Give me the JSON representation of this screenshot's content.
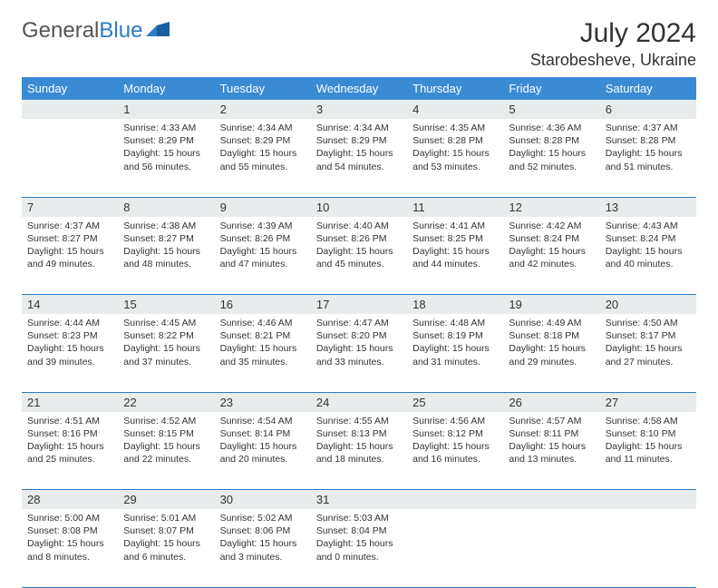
{
  "brand": {
    "part1": "General",
    "part2": "Blue"
  },
  "title": "July 2024",
  "location": "Starobesheve, Ukraine",
  "colors": {
    "header_bg": "#3b8bd4",
    "header_text": "#ffffff",
    "daynum_bg": "#e9eced",
    "border": "#2d7bc4",
    "brand_accent": "#2d7bc4",
    "text": "#333333",
    "background": "#ffffff"
  },
  "weekdays": [
    "Sunday",
    "Monday",
    "Tuesday",
    "Wednesday",
    "Thursday",
    "Friday",
    "Saturday"
  ],
  "weeks": [
    {
      "nums": [
        "",
        "1",
        "2",
        "3",
        "4",
        "5",
        "6"
      ],
      "cells": [
        null,
        {
          "sunrise": "Sunrise: 4:33 AM",
          "sunset": "Sunset: 8:29 PM",
          "daylight": "Daylight: 15 hours and 56 minutes."
        },
        {
          "sunrise": "Sunrise: 4:34 AM",
          "sunset": "Sunset: 8:29 PM",
          "daylight": "Daylight: 15 hours and 55 minutes."
        },
        {
          "sunrise": "Sunrise: 4:34 AM",
          "sunset": "Sunset: 8:29 PM",
          "daylight": "Daylight: 15 hours and 54 minutes."
        },
        {
          "sunrise": "Sunrise: 4:35 AM",
          "sunset": "Sunset: 8:28 PM",
          "daylight": "Daylight: 15 hours and 53 minutes."
        },
        {
          "sunrise": "Sunrise: 4:36 AM",
          "sunset": "Sunset: 8:28 PM",
          "daylight": "Daylight: 15 hours and 52 minutes."
        },
        {
          "sunrise": "Sunrise: 4:37 AM",
          "sunset": "Sunset: 8:28 PM",
          "daylight": "Daylight: 15 hours and 51 minutes."
        }
      ]
    },
    {
      "nums": [
        "7",
        "8",
        "9",
        "10",
        "11",
        "12",
        "13"
      ],
      "cells": [
        {
          "sunrise": "Sunrise: 4:37 AM",
          "sunset": "Sunset: 8:27 PM",
          "daylight": "Daylight: 15 hours and 49 minutes."
        },
        {
          "sunrise": "Sunrise: 4:38 AM",
          "sunset": "Sunset: 8:27 PM",
          "daylight": "Daylight: 15 hours and 48 minutes."
        },
        {
          "sunrise": "Sunrise: 4:39 AM",
          "sunset": "Sunset: 8:26 PM",
          "daylight": "Daylight: 15 hours and 47 minutes."
        },
        {
          "sunrise": "Sunrise: 4:40 AM",
          "sunset": "Sunset: 8:26 PM",
          "daylight": "Daylight: 15 hours and 45 minutes."
        },
        {
          "sunrise": "Sunrise: 4:41 AM",
          "sunset": "Sunset: 8:25 PM",
          "daylight": "Daylight: 15 hours and 44 minutes."
        },
        {
          "sunrise": "Sunrise: 4:42 AM",
          "sunset": "Sunset: 8:24 PM",
          "daylight": "Daylight: 15 hours and 42 minutes."
        },
        {
          "sunrise": "Sunrise: 4:43 AM",
          "sunset": "Sunset: 8:24 PM",
          "daylight": "Daylight: 15 hours and 40 minutes."
        }
      ]
    },
    {
      "nums": [
        "14",
        "15",
        "16",
        "17",
        "18",
        "19",
        "20"
      ],
      "cells": [
        {
          "sunrise": "Sunrise: 4:44 AM",
          "sunset": "Sunset: 8:23 PM",
          "daylight": "Daylight: 15 hours and 39 minutes."
        },
        {
          "sunrise": "Sunrise: 4:45 AM",
          "sunset": "Sunset: 8:22 PM",
          "daylight": "Daylight: 15 hours and 37 minutes."
        },
        {
          "sunrise": "Sunrise: 4:46 AM",
          "sunset": "Sunset: 8:21 PM",
          "daylight": "Daylight: 15 hours and 35 minutes."
        },
        {
          "sunrise": "Sunrise: 4:47 AM",
          "sunset": "Sunset: 8:20 PM",
          "daylight": "Daylight: 15 hours and 33 minutes."
        },
        {
          "sunrise": "Sunrise: 4:48 AM",
          "sunset": "Sunset: 8:19 PM",
          "daylight": "Daylight: 15 hours and 31 minutes."
        },
        {
          "sunrise": "Sunrise: 4:49 AM",
          "sunset": "Sunset: 8:18 PM",
          "daylight": "Daylight: 15 hours and 29 minutes."
        },
        {
          "sunrise": "Sunrise: 4:50 AM",
          "sunset": "Sunset: 8:17 PM",
          "daylight": "Daylight: 15 hours and 27 minutes."
        }
      ]
    },
    {
      "nums": [
        "21",
        "22",
        "23",
        "24",
        "25",
        "26",
        "27"
      ],
      "cells": [
        {
          "sunrise": "Sunrise: 4:51 AM",
          "sunset": "Sunset: 8:16 PM",
          "daylight": "Daylight: 15 hours and 25 minutes."
        },
        {
          "sunrise": "Sunrise: 4:52 AM",
          "sunset": "Sunset: 8:15 PM",
          "daylight": "Daylight: 15 hours and 22 minutes."
        },
        {
          "sunrise": "Sunrise: 4:54 AM",
          "sunset": "Sunset: 8:14 PM",
          "daylight": "Daylight: 15 hours and 20 minutes."
        },
        {
          "sunrise": "Sunrise: 4:55 AM",
          "sunset": "Sunset: 8:13 PM",
          "daylight": "Daylight: 15 hours and 18 minutes."
        },
        {
          "sunrise": "Sunrise: 4:56 AM",
          "sunset": "Sunset: 8:12 PM",
          "daylight": "Daylight: 15 hours and 16 minutes."
        },
        {
          "sunrise": "Sunrise: 4:57 AM",
          "sunset": "Sunset: 8:11 PM",
          "daylight": "Daylight: 15 hours and 13 minutes."
        },
        {
          "sunrise": "Sunrise: 4:58 AM",
          "sunset": "Sunset: 8:10 PM",
          "daylight": "Daylight: 15 hours and 11 minutes."
        }
      ]
    },
    {
      "nums": [
        "28",
        "29",
        "30",
        "31",
        "",
        "",
        ""
      ],
      "cells": [
        {
          "sunrise": "Sunrise: 5:00 AM",
          "sunset": "Sunset: 8:08 PM",
          "daylight": "Daylight: 15 hours and 8 minutes."
        },
        {
          "sunrise": "Sunrise: 5:01 AM",
          "sunset": "Sunset: 8:07 PM",
          "daylight": "Daylight: 15 hours and 6 minutes."
        },
        {
          "sunrise": "Sunrise: 5:02 AM",
          "sunset": "Sunset: 8:06 PM",
          "daylight": "Daylight: 15 hours and 3 minutes."
        },
        {
          "sunrise": "Sunrise: 5:03 AM",
          "sunset": "Sunset: 8:04 PM",
          "daylight": "Daylight: 15 hours and 0 minutes."
        },
        null,
        null,
        null
      ]
    }
  ]
}
